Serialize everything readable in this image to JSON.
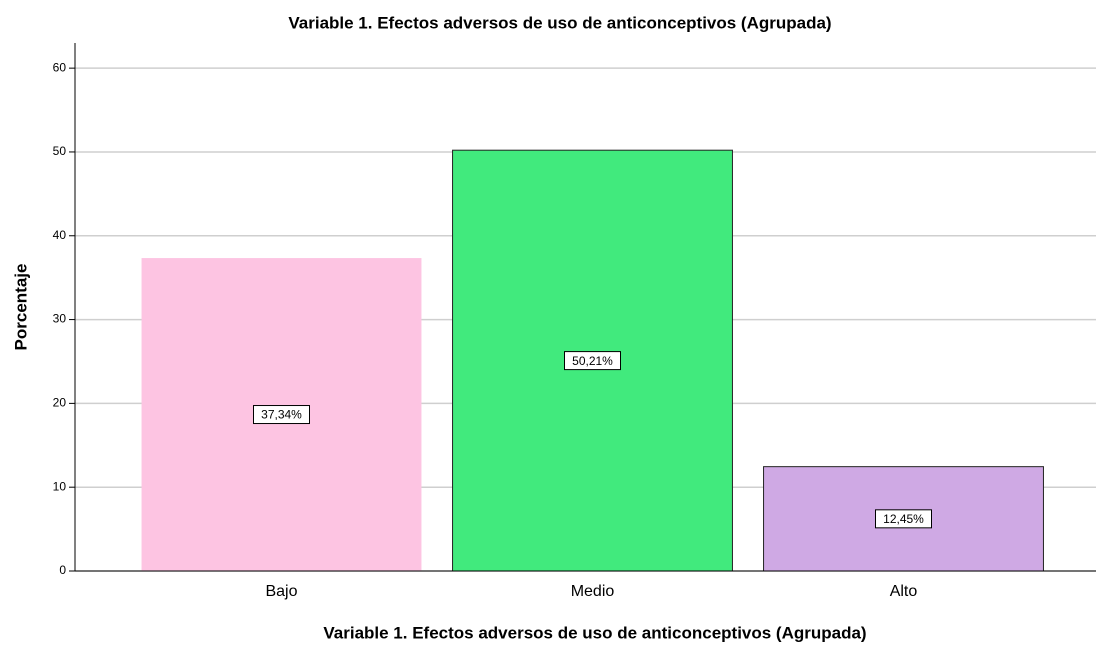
{
  "chart_data": {
    "type": "bar",
    "title": "Variable 1. Efectos adversos de uso de anticonceptivos (Agrupada)",
    "xlabel": "Variable 1. Efectos adversos de uso de anticonceptivos (Agrupada)",
    "ylabel": "Porcentaje",
    "categories": [
      "Bajo",
      "Medio",
      "Alto"
    ],
    "values": [
      37.34,
      50.21,
      12.45
    ],
    "value_labels": [
      "37,34%",
      "50,21%",
      "12,45%"
    ],
    "colors": [
      "#fdc4e2",
      "#41ea7d",
      "#cfa9e4"
    ],
    "ylim": [
      0,
      63
    ],
    "yticks": [
      0,
      10,
      20,
      30,
      40,
      50,
      60
    ],
    "grid": true
  }
}
